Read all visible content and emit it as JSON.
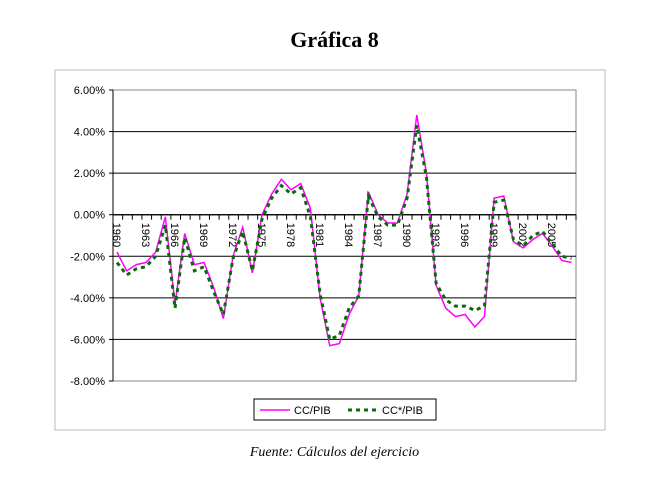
{
  "chart_data": {
    "type": "line",
    "title": "Gráfica 8",
    "source": "Fuente: Cálculos del ejercicio",
    "xlabel": "",
    "ylabel": "",
    "ylim": [
      -8,
      6
    ],
    "yticks": [
      "6.00%",
      "4.00%",
      "2.00%",
      "0.00%",
      "-2.00%",
      "-4.00%",
      "-6.00%",
      "-8.00%"
    ],
    "ytick_values": [
      6,
      4,
      2,
      0,
      -2,
      -4,
      -6,
      -8
    ],
    "x": [
      1960,
      1961,
      1962,
      1963,
      1964,
      1965,
      1966,
      1967,
      1968,
      1969,
      1970,
      1971,
      1972,
      1973,
      1974,
      1975,
      1976,
      1977,
      1978,
      1979,
      1980,
      1981,
      1982,
      1983,
      1984,
      1985,
      1986,
      1987,
      1988,
      1989,
      1990,
      1991,
      1992,
      1993,
      1994,
      1995,
      1996,
      1997,
      1998,
      1999,
      2000,
      2001,
      2002,
      2003,
      2004,
      2005,
      2006,
      2007
    ],
    "xtick_labels": [
      "1960",
      "1963",
      "1966",
      "1969",
      "1972",
      "1975",
      "1978",
      "1981",
      "1984",
      "1987",
      "1990",
      "1993",
      "1996",
      "1999",
      "2002",
      "2005"
    ],
    "grid": true,
    "legend": "bottom-center",
    "series": [
      {
        "name": "CC/PIB",
        "color": "#ff00ff",
        "dash": "solid",
        "values": [
          -1.8,
          -2.7,
          -2.4,
          -2.3,
          -1.8,
          -0.1,
          -4.3,
          -0.9,
          -2.4,
          -2.3,
          -3.5,
          -5.0,
          -2.0,
          -0.6,
          -2.8,
          0.0,
          1.0,
          1.7,
          1.2,
          1.5,
          0.3,
          -4.0,
          -6.3,
          -6.2,
          -4.8,
          -3.9,
          1.1,
          0.0,
          -0.4,
          -0.4,
          1.0,
          4.8,
          2.0,
          -3.4,
          -4.5,
          -4.9,
          -4.8,
          -5.4,
          -4.9,
          0.8,
          0.9,
          -1.3,
          -1.6,
          -1.2,
          -0.9,
          -1.5,
          -2.2,
          -2.3
        ]
      },
      {
        "name": "CC*/PIB",
        "color": "#0a6b0a",
        "dash": "dotted",
        "values": [
          -2.3,
          -2.9,
          -2.6,
          -2.5,
          -2.0,
          -0.5,
          -4.5,
          -1.1,
          -2.7,
          -2.5,
          -3.7,
          -4.8,
          -2.1,
          -0.8,
          -2.7,
          -0.2,
          0.8,
          1.4,
          1.0,
          1.3,
          -0.1,
          -3.8,
          -6.0,
          -5.8,
          -4.5,
          -3.9,
          0.9,
          -0.1,
          -0.5,
          -0.5,
          0.8,
          4.3,
          1.8,
          -3.3,
          -4.1,
          -4.4,
          -4.4,
          -4.6,
          -4.4,
          0.6,
          0.7,
          -1.2,
          -1.5,
          -1.0,
          -0.8,
          -1.4,
          -2.0,
          -2.1
        ]
      }
    ]
  }
}
